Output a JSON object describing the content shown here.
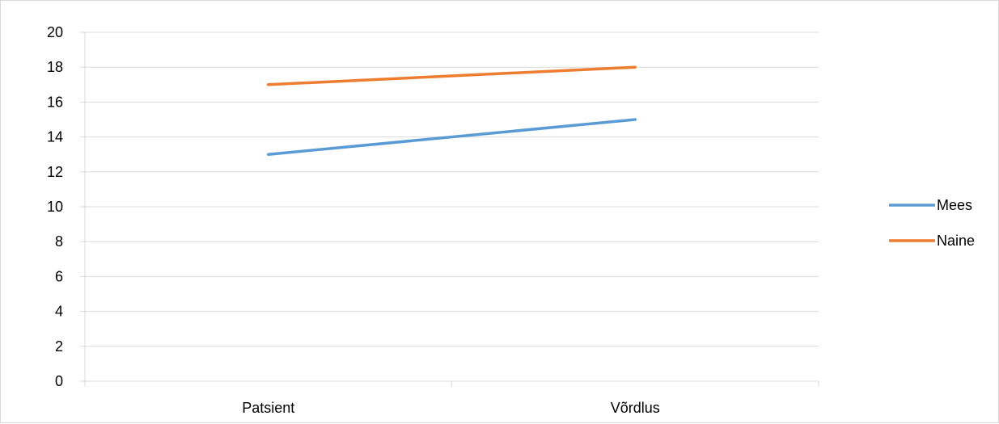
{
  "chart_data": {
    "type": "line",
    "title": "",
    "xlabel": "",
    "ylabel": "",
    "categories": [
      "Patsient",
      "Võrdlus"
    ],
    "series": [
      {
        "name": "Mees",
        "values": [
          13,
          15
        ],
        "color": "#5b9bd5"
      },
      {
        "name": "Naine",
        "values": [
          17,
          18
        ],
        "color": "#ed7d31"
      }
    ],
    "ylim": [
      0,
      20
    ],
    "yticks": [
      "0",
      "2",
      "4",
      "6",
      "8",
      "10",
      "12",
      "14",
      "16",
      "18",
      "20"
    ],
    "grid": true,
    "legend_position": "right",
    "gridline_color": "#d9d9d9"
  }
}
